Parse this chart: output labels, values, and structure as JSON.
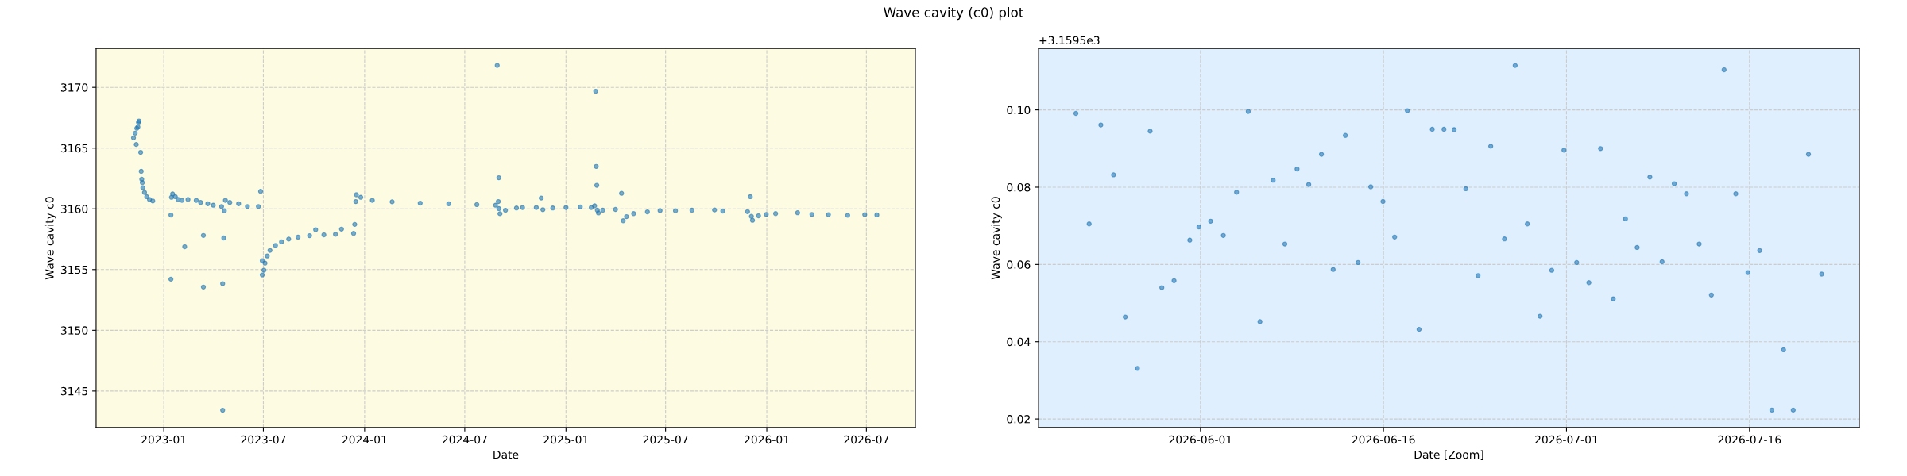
{
  "chart_data": [
    {
      "type": "scatter",
      "title": "Wave cavity (c0) plot",
      "xlabel": "Date",
      "ylabel": "Wave cavity c0",
      "marker": "circle",
      "grid": true,
      "xlim": [
        "2022-08-31",
        "2026-09-28"
      ],
      "ylim": [
        3142.0,
        3173.2
      ],
      "xticks": [
        {
          "value": "2023-01-01",
          "label": "2023-01"
        },
        {
          "value": "2023-07-01",
          "label": "2023-07"
        },
        {
          "value": "2024-01-01",
          "label": "2024-01"
        },
        {
          "value": "2024-07-01",
          "label": "2024-07"
        },
        {
          "value": "2025-01-01",
          "label": "2025-01"
        },
        {
          "value": "2025-07-01",
          "label": "2025-07"
        },
        {
          "value": "2026-01-01",
          "label": "2026-01"
        },
        {
          "value": "2026-07-01",
          "label": "2026-07"
        }
      ],
      "yticks": [
        3145,
        3150,
        3155,
        3160,
        3165,
        3170
      ],
      "series": [
        {
          "color": "#1f77b4",
          "x": [
            "2022-11-07",
            "2022-11-10",
            "2022-11-12",
            "2022-11-13",
            "2022-11-15",
            "2022-11-16",
            "2022-11-17",
            "2022-11-20",
            "2022-11-21",
            "2022-11-22",
            "2022-11-23",
            "2022-11-24",
            "2022-11-27",
            "2022-12-01",
            "2022-12-06",
            "2022-12-12",
            "2023-01-14",
            "2023-01-14",
            "2023-01-15",
            "2023-01-17",
            "2023-01-22",
            "2023-01-27",
            "2023-02-03",
            "2023-02-08",
            "2023-02-14",
            "2023-03-01",
            "2023-03-09",
            "2023-03-14",
            "2023-03-14",
            "2023-03-22",
            "2023-04-01",
            "2023-04-16",
            "2023-04-18",
            "2023-04-18",
            "2023-04-20",
            "2023-04-21",
            "2023-04-23",
            "2023-05-01",
            "2023-05-17",
            "2023-06-02",
            "2023-06-22",
            "2023-06-26",
            "2023-06-29",
            "2023-06-29",
            "2023-07-02",
            "2023-07-04",
            "2023-07-08",
            "2023-07-13",
            "2023-07-23",
            "2023-08-03",
            "2023-08-16",
            "2023-09-02",
            "2023-09-23",
            "2023-10-04",
            "2023-10-19",
            "2023-11-09",
            "2023-11-20",
            "2023-12-12",
            "2023-12-14",
            "2023-12-16",
            "2023-12-17",
            "2023-12-25",
            "2024-01-15",
            "2024-02-20",
            "2024-04-11",
            "2024-06-02",
            "2024-07-23",
            "2024-08-26",
            "2024-08-29",
            "2024-08-31",
            "2024-09-01",
            "2024-09-01",
            "2024-09-03",
            "2024-09-13",
            "2024-10-03",
            "2024-10-14",
            "2024-11-08",
            "2024-11-17",
            "2024-11-20",
            "2024-12-08",
            "2025-01-01",
            "2025-01-27",
            "2025-02-16",
            "2025-02-22",
            "2025-02-24",
            "2025-02-25",
            "2025-02-26",
            "2025-02-27",
            "2025-03-01",
            "2025-03-09",
            "2025-04-01",
            "2025-04-12",
            "2025-04-15",
            "2025-04-21",
            "2025-05-04",
            "2025-05-29",
            "2025-06-21",
            "2025-07-19",
            "2025-08-18",
            "2025-09-28",
            "2025-10-13",
            "2025-11-27",
            "2025-12-02",
            "2025-12-04",
            "2025-12-06",
            "2025-12-17",
            "2025-12-31",
            "2026-01-17",
            "2026-02-26",
            "2026-03-24",
            "2026-04-23",
            "2026-05-28",
            "2026-06-28",
            "2026-07-20"
          ],
          "values": [
            3165.84,
            3166.23,
            3165.3,
            3166.63,
            3166.74,
            3167.12,
            3167.23,
            3164.65,
            3163.09,
            3162.44,
            3162.16,
            3161.74,
            3161.35,
            3161.0,
            3160.77,
            3160.65,
            3159.49,
            3154.21,
            3160.95,
            3161.23,
            3161.0,
            3160.77,
            3160.7,
            3156.88,
            3160.77,
            3160.7,
            3160.53,
            3157.81,
            3153.56,
            3160.42,
            3160.3,
            3160.19,
            3153.84,
            3143.42,
            3157.6,
            3159.84,
            3160.7,
            3160.53,
            3160.42,
            3160.19,
            3160.19,
            3161.44,
            3154.56,
            3155.72,
            3154.95,
            3155.53,
            3156.12,
            3156.58,
            3156.98,
            3157.28,
            3157.51,
            3157.67,
            3157.79,
            3158.28,
            3157.86,
            3157.91,
            3158.33,
            3157.98,
            3158.72,
            3160.6,
            3161.16,
            3160.95,
            3160.7,
            3160.58,
            3160.47,
            3160.42,
            3160.35,
            3160.3,
            3171.81,
            3160.6,
            3162.56,
            3160.02,
            3159.6,
            3159.88,
            3160.07,
            3160.11,
            3160.11,
            3160.89,
            3159.93,
            3160.07,
            3160.11,
            3160.16,
            3160.11,
            3160.25,
            3169.68,
            3163.49,
            3161.94,
            3159.89,
            3159.66,
            3159.89,
            3159.95,
            3161.28,
            3159.02,
            3159.36,
            3159.61,
            3159.75,
            3159.86,
            3159.84,
            3159.89,
            3159.91,
            3159.82,
            3159.77,
            3161.0,
            3159.38,
            3159.06,
            3159.43,
            3159.54,
            3159.61,
            3159.68,
            3159.54,
            3159.52,
            3159.47,
            3159.52,
            3159.5
          ]
        }
      ]
    },
    {
      "type": "scatter",
      "xlabel": "Date [Zoom]",
      "ylabel": "Wave cavity c0",
      "marker": "circle",
      "grid": true,
      "annotations": [
        "+3.1595e3"
      ],
      "xlim": [
        "2026-05-18T17:30",
        "2026-07-25"
      ],
      "ylim": [
        0.0178,
        0.1159
      ],
      "xticks": [
        {
          "value": "2026-06-01",
          "label": "2026-06-01"
        },
        {
          "value": "2026-06-16",
          "label": "2026-06-16"
        },
        {
          "value": "2026-07-01",
          "label": "2026-07-01"
        },
        {
          "value": "2026-07-16",
          "label": "2026-07-16"
        }
      ],
      "yticks": [
        0.02,
        0.04,
        0.06,
        0.08,
        {
          "value": 0.1,
          "label": "0.10"
        }
      ],
      "series": [
        {
          "color": "#1f77b4",
          "x": [
            "2026-05-21T19:00",
            "2026-05-22T21:00",
            "2026-05-23T20:00",
            "2026-05-24T21:00",
            "2026-05-25T20:00",
            "2026-05-26T20:00",
            "2026-05-27T21:00",
            "2026-05-28T20:00",
            "2026-05-29T20:00",
            "2026-05-31T03:00",
            "2026-05-31T21:00",
            "2026-06-01T20:00",
            "2026-06-02T21:00",
            "2026-06-03T23:00",
            "2026-06-04T22:00",
            "2026-06-05T21:00",
            "2026-06-06T23:00",
            "2026-06-07T22:00",
            "2026-06-08T22:00",
            "2026-06-09T21:00",
            "2026-06-10T22:00",
            "2026-06-11T21:00",
            "2026-06-12T21:00",
            "2026-06-13T22:00",
            "2026-06-14T23:00",
            "2026-06-15T23:00",
            "2026-06-16T22:00",
            "2026-06-17T23:00",
            "2026-06-18T22:00",
            "2026-06-20T00:00",
            "2026-06-20T23:00",
            "2026-06-21T19:00",
            "2026-06-22T18:00",
            "2026-06-23T18:00",
            "2026-06-24T19:00",
            "2026-06-25T22:00",
            "2026-06-26T19:00",
            "2026-06-27T19:00",
            "2026-06-28T20:00",
            "2026-06-29T19:00",
            "2026-06-30T19:00",
            "2026-07-01T20:00",
            "2026-07-02T20:00",
            "2026-07-03T19:00",
            "2026-07-04T20:00",
            "2026-07-05T20:00",
            "2026-07-06T19:00",
            "2026-07-07T20:00",
            "2026-07-08T20:00",
            "2026-07-09T20:00",
            "2026-07-10T20:00",
            "2026-07-11T21:00",
            "2026-07-12T21:00",
            "2026-07-13T22:00",
            "2026-07-14T21:00",
            "2026-07-15T21:00",
            "2026-07-16T20:00",
            "2026-07-17T20:00",
            "2026-07-18T19:00",
            "2026-07-19T14:00",
            "2026-07-20T20:00",
            "2026-07-21T22:00"
          ],
          "values": [
            0.0991,
            0.0705,
            0.0961,
            0.0832,
            0.0464,
            0.0331,
            0.0945,
            0.054,
            0.0558,
            0.0663,
            0.0697,
            0.0712,
            0.0675,
            0.0787,
            0.0996,
            0.0452,
            0.0818,
            0.0653,
            0.0847,
            0.0807,
            0.0885,
            0.0587,
            0.0934,
            0.0605,
            0.0801,
            0.0763,
            0.0671,
            0.0998,
            0.0432,
            0.095,
            0.095,
            0.0949,
            0.0796,
            0.0571,
            0.0906,
            0.0666,
            0.1115,
            0.0705,
            0.0466,
            0.0585,
            0.0896,
            0.0605,
            0.0553,
            0.09,
            0.0511,
            0.0718,
            0.0644,
            0.0826,
            0.0607,
            0.0809,
            0.0783,
            0.0653,
            0.0521,
            0.1104,
            0.0783,
            0.0579,
            0.0636,
            0.0223,
            0.0379,
            0.0223,
            0.0885,
            0.0575
          ]
        }
      ]
    }
  ]
}
